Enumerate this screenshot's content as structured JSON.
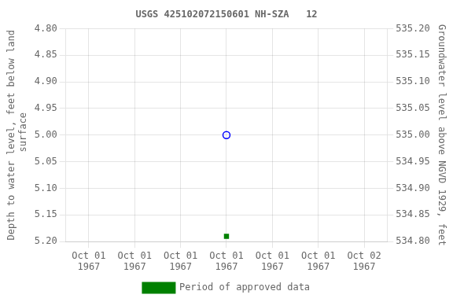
{
  "chart_data": {
    "type": "scatter",
    "title": "USGS 425102072150601 NH-SZA   12",
    "y_label": "Depth to water level, feet below land\n surface",
    "y2_label": "Groundwater level above NGVD 1929, feet",
    "categories": [
      "Oct 01\n1967",
      "Oct 01\n1967",
      "Oct 01\n1967",
      "Oct 01\n1967",
      "Oct 01\n1967",
      "Oct 01\n1967",
      "Oct 02\n1967"
    ],
    "series": [
      {
        "color": "#0000ff",
        "marker": "open_circle",
        "values": [
          null,
          null,
          null,
          5.0,
          null,
          null,
          null
        ]
      },
      {
        "name": "Period of approved data",
        "color": "#008000",
        "marker": "square",
        "values": [
          null,
          null,
          null,
          5.19,
          null,
          null,
          null
        ]
      }
    ],
    "ylim": [
      5.2,
      4.8
    ],
    "yticks": [
      {
        "value": 4.8,
        "label": "4.80"
      },
      4.85,
      {
        "value": 4.9,
        "label": "4.90"
      },
      4.95,
      {
        "value": 5.0,
        "label": "5.00"
      },
      5.05,
      {
        "value": 5.1,
        "label": "5.10"
      },
      5.15,
      {
        "value": 5.2,
        "label": "5.20"
      }
    ],
    "y2lim": [
      534.8,
      535.2
    ],
    "y2ticks": [
      {
        "value": 535.2,
        "label": "535.20"
      },
      535.15,
      {
        "value": 535.1,
        "label": "535.10"
      },
      535.05,
      {
        "value": 535.0,
        "label": "535.00"
      },
      534.95,
      {
        "value": 534.9,
        "label": "534.90"
      },
      534.85,
      {
        "value": 534.8,
        "label": "534.80"
      }
    ],
    "grid": true,
    "legend": "bottom"
  }
}
